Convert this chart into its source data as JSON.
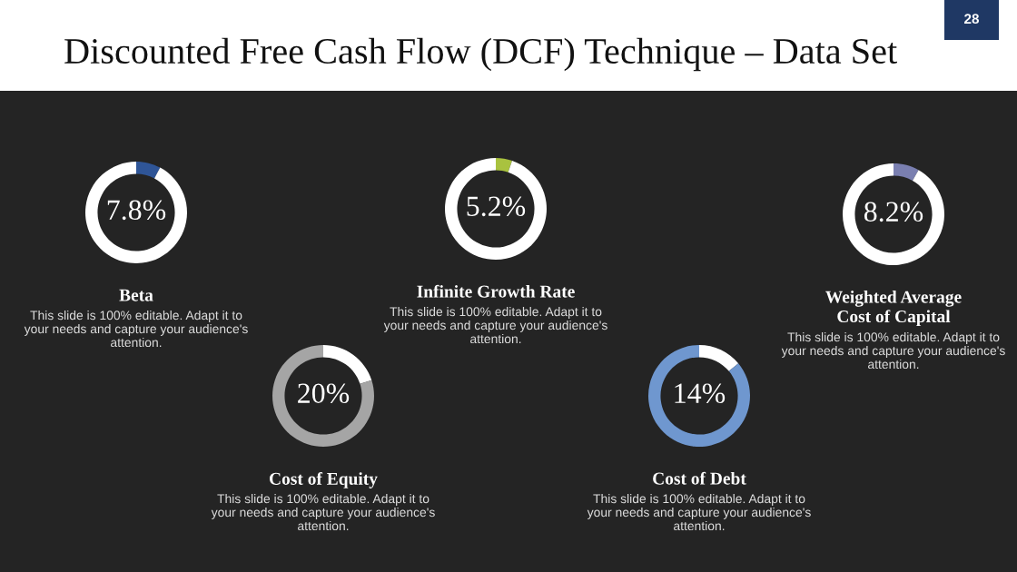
{
  "chart_data": [
    {
      "type": "other",
      "title": "Discounted Free Cash Flow (DCF) Technique – Data Set",
      "annotations": [
        "28"
      ]
    },
    {
      "type": "donut",
      "title": "Beta",
      "categories": [
        null,
        null
      ],
      "values": [
        7.8,
        92.2
      ],
      "colors": [
        "#2f5597",
        "#ffffff"
      ],
      "value_labels": [
        "7.8%",
        null
      ],
      "annotations": [
        "This slide is 100% editable. Adapt it to your needs and capture your audience's attention."
      ]
    },
    {
      "type": "donut",
      "title": "Cost of Equity",
      "categories": [
        null,
        null
      ],
      "values": [
        20,
        80
      ],
      "colors": [
        "#ffffff",
        "#a5a5a5"
      ],
      "value_labels": [
        "20%",
        null
      ],
      "annotations": [
        "This slide is 100% editable. Adapt it to your needs and capture your audience's attention."
      ]
    },
    {
      "type": "donut",
      "title": "Infinite Growth Rate",
      "categories": [
        null,
        null
      ],
      "values": [
        5.2,
        94.8
      ],
      "colors": [
        "#a9c23f",
        "#ffffff"
      ],
      "value_labels": [
        "5.2%",
        null
      ],
      "annotations": [
        "This slide is 100% editable. Adapt it to your needs and capture your audience's attention."
      ]
    },
    {
      "type": "donut",
      "title": "Cost of Debt",
      "categories": [
        null,
        null
      ],
      "values": [
        14,
        86
      ],
      "colors": [
        "#ffffff",
        "#6f97cf"
      ],
      "value_labels": [
        "14%",
        null
      ],
      "annotations": [
        "This slide is 100% editable. Adapt it to your needs and capture your audience's attention."
      ]
    },
    {
      "type": "donut",
      "title": "Weighted Average\nCost of Capital",
      "categories": [
        null,
        null
      ],
      "values": [
        8.2,
        91.8
      ],
      "colors": [
        "#7a7fb0",
        "#ffffff"
      ],
      "value_labels": [
        "8.2%",
        null
      ],
      "annotations": [
        "This slide is 100% editable. Adapt it to your needs and capture your audience's attention."
      ]
    }
  ]
}
